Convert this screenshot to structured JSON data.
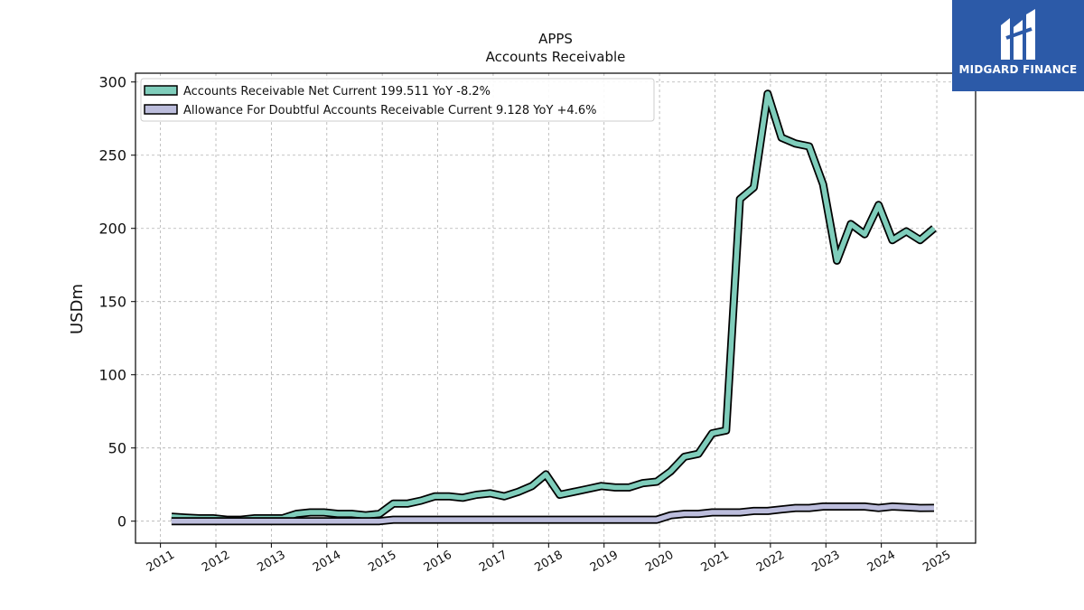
{
  "brand": {
    "name": "MIDGARD FINANCE",
    "bg_color": "#2c5aa8"
  },
  "chart_data": {
    "type": "line",
    "title": "APPS",
    "subtitle": "Accounts Receivable",
    "xlabel": "",
    "ylabel": "USDm",
    "xlim": [
      2010.55,
      2025.7
    ],
    "ylim": [
      -15,
      306
    ],
    "y_ticks": [
      0,
      50,
      100,
      150,
      200,
      250,
      300
    ],
    "x_ticks": [
      2011,
      2012,
      2013,
      2014,
      2015,
      2016,
      2017,
      2018,
      2019,
      2020,
      2021,
      2022,
      2023,
      2024,
      2025
    ],
    "x_tick_labels": [
      "2011",
      "2012",
      "2013",
      "2014",
      "2015",
      "2016",
      "2017",
      "2018",
      "2019",
      "2020",
      "2021",
      "2022",
      "2023",
      "2024",
      "2025"
    ],
    "y_tick_labels": [
      "0",
      "50",
      "100",
      "150",
      "200",
      "250",
      "300"
    ],
    "grid": true,
    "legend_position": "top-left",
    "series": [
      {
        "name": "Accounts Receivable Net Current  199.511 YoY -8.2%",
        "color": "#7fcdbb",
        "x": [
          2011.2,
          2011.45,
          2011.7,
          2011.95,
          2012.2,
          2012.45,
          2012.7,
          2012.95,
          2013.2,
          2013.45,
          2013.7,
          2013.95,
          2014.2,
          2014.45,
          2014.7,
          2014.95,
          2015.2,
          2015.45,
          2015.7,
          2015.95,
          2016.2,
          2016.45,
          2016.7,
          2016.95,
          2017.2,
          2017.45,
          2017.7,
          2017.95,
          2018.2,
          2018.45,
          2018.7,
          2018.95,
          2019.2,
          2019.45,
          2019.7,
          2019.95,
          2020.2,
          2020.45,
          2020.7,
          2020.95,
          2021.2,
          2021.45,
          2021.7,
          2021.95,
          2022.2,
          2022.45,
          2022.7,
          2022.95,
          2023.2,
          2023.45,
          2023.7,
          2023.95,
          2024.2,
          2024.45,
          2024.7,
          2024.95
        ],
        "values": [
          3,
          2.5,
          2,
          2,
          1,
          1,
          2,
          2,
          2,
          5,
          6,
          6,
          5,
          5,
          4,
          5,
          12,
          12,
          14,
          17,
          17,
          16,
          18,
          19,
          17,
          20,
          24,
          32,
          18,
          20,
          22,
          24,
          23,
          23,
          26,
          27,
          34,
          44,
          46,
          60,
          62,
          220,
          228,
          292,
          262,
          258,
          256,
          230,
          178,
          203,
          196,
          216,
          192,
          198,
          192,
          200
        ]
      },
      {
        "name": "Allowance For Doubtful Accounts Receivable Current  9.128 YoY +4.6%",
        "color": "#bcbddc",
        "x": [
          2011.2,
          2011.45,
          2011.7,
          2011.95,
          2012.2,
          2012.45,
          2012.7,
          2012.95,
          2013.2,
          2013.45,
          2013.7,
          2013.95,
          2014.2,
          2014.45,
          2014.7,
          2014.95,
          2015.2,
          2015.45,
          2015.7,
          2015.95,
          2016.2,
          2016.45,
          2016.7,
          2016.95,
          2017.2,
          2017.45,
          2017.7,
          2017.95,
          2018.2,
          2018.45,
          2018.7,
          2018.95,
          2019.2,
          2019.45,
          2019.7,
          2019.95,
          2020.2,
          2020.45,
          2020.7,
          2020.95,
          2021.2,
          2021.45,
          2021.7,
          2021.95,
          2022.2,
          2022.45,
          2022.7,
          2022.95,
          2023.2,
          2023.45,
          2023.7,
          2023.95,
          2024.2,
          2024.45,
          2024.7,
          2024.95
        ],
        "values": [
          0,
          0,
          0,
          0,
          0,
          0,
          0,
          0,
          0,
          0,
          0,
          0,
          0,
          0,
          0,
          0,
          1,
          1,
          1,
          1,
          1,
          1,
          1,
          1,
          1,
          1,
          1,
          1,
          1,
          1,
          1,
          1,
          1,
          1,
          1,
          1,
          4,
          5,
          5,
          6,
          6,
          6,
          7,
          7,
          8,
          9,
          9,
          10,
          10,
          10,
          10,
          9,
          10,
          9.5,
          9,
          9.1
        ]
      }
    ]
  }
}
